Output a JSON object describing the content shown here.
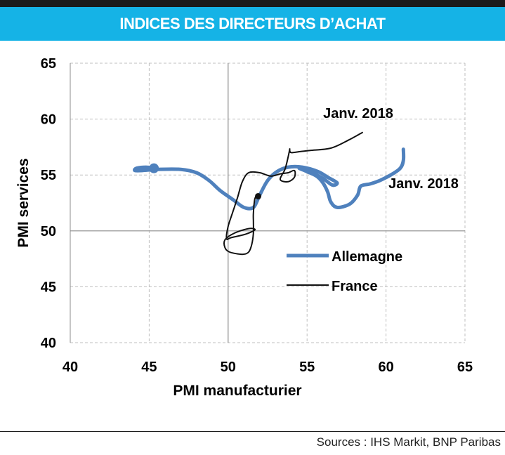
{
  "header": {
    "title": "INDICES DES DIRECTEURS D’ACHAT"
  },
  "footer": {
    "source": "Sources : IHS Markit, BNP Paribas"
  },
  "colors": {
    "title_bar": "#15b3e6",
    "allemagne": "#4f81bd",
    "france": "#111111",
    "grid": "#bfbfbf",
    "axis": "#8c8c8c"
  },
  "chart_data": {
    "type": "line",
    "title": "INDICES DES DIRECTEURS D’ACHAT",
    "xlabel": "PMI manufacturier",
    "ylabel": "PMI  services",
    "xlim": [
      40,
      65
    ],
    "ylim": [
      40,
      65
    ],
    "x_ticks": [
      "40",
      "45",
      "50",
      "55",
      "60",
      "65"
    ],
    "y_ticks": [
      "40",
      "45",
      "50",
      "55",
      "60",
      "65"
    ],
    "grid": "dashed",
    "crosshair": {
      "x": 50,
      "y": 50
    },
    "legend": {
      "position": "center-right",
      "entries": [
        "Allemagne",
        "France"
      ]
    },
    "series": [
      {
        "name": "Allemagne",
        "color": "#4f81bd",
        "start_marker": true,
        "label": "Janv. 2018",
        "points": [
          [
            45.3,
            55.6
          ],
          [
            44.8,
            55.7
          ],
          [
            44.2,
            55.6
          ],
          [
            44.1,
            55.4
          ],
          [
            44.6,
            55.4
          ],
          [
            45.5,
            55.5
          ],
          [
            47,
            55.5
          ],
          [
            48,
            55.2
          ],
          [
            48.8,
            54.5
          ],
          [
            49.5,
            53.6
          ],
          [
            50.3,
            52.8
          ],
          [
            51,
            52.1
          ],
          [
            51.6,
            52.1
          ],
          [
            52,
            53.2
          ],
          [
            52.5,
            54.5
          ],
          [
            53.1,
            55.3
          ],
          [
            53.8,
            55.7
          ],
          [
            54.7,
            55.7
          ],
          [
            55.7,
            55.3
          ],
          [
            56.3,
            54.8
          ],
          [
            56.9,
            54.3
          ],
          [
            56.6,
            54.1
          ],
          [
            56,
            54.7
          ],
          [
            55.2,
            55.3
          ],
          [
            54.5,
            55.6
          ],
          [
            55,
            55.3
          ],
          [
            55.6,
            54.9
          ],
          [
            56,
            54.3
          ],
          [
            56.3,
            53.5
          ],
          [
            56.5,
            52.6
          ],
          [
            56.9,
            52.1
          ],
          [
            57.7,
            52.4
          ],
          [
            58.2,
            53.2
          ],
          [
            58.4,
            54
          ],
          [
            59,
            54.2
          ],
          [
            59.6,
            54.5
          ],
          [
            60.3,
            55
          ],
          [
            60.9,
            55.6
          ],
          [
            61.1,
            56.3
          ],
          [
            61.1,
            57.3
          ]
        ]
      },
      {
        "name": "France",
        "color": "#111111",
        "end_marker": true,
        "label": "Janv. 2018",
        "points": [
          [
            51.9,
            53.1
          ],
          [
            51.7,
            52.9
          ],
          [
            51.6,
            51.6
          ],
          [
            51.6,
            50.8
          ],
          [
            51.6,
            49.8
          ],
          [
            51.5,
            48.8
          ],
          [
            51.3,
            48.1
          ],
          [
            50.9,
            47.9
          ],
          [
            50.1,
            48.1
          ],
          [
            49.8,
            48.5
          ],
          [
            49.8,
            49.2
          ],
          [
            50.4,
            49.8
          ],
          [
            51.3,
            50.2
          ],
          [
            51.7,
            50.1
          ],
          [
            51.1,
            49.7
          ],
          [
            50.2,
            49.4
          ],
          [
            49.9,
            49.3
          ],
          [
            50,
            50.4
          ],
          [
            50.3,
            51.7
          ],
          [
            50.6,
            53
          ],
          [
            50.9,
            54.4
          ],
          [
            51.3,
            55.2
          ],
          [
            52,
            55.2
          ],
          [
            52.7,
            54.9
          ],
          [
            53.3,
            55.1
          ],
          [
            53.8,
            55.2
          ],
          [
            54.2,
            55.4
          ],
          [
            54.2,
            54.8
          ],
          [
            53.8,
            54.4
          ],
          [
            53.3,
            54.6
          ],
          [
            53.6,
            55.5
          ],
          [
            53.8,
            56.6
          ],
          [
            53.9,
            57.3
          ],
          [
            53.9,
            57.2
          ],
          [
            54,
            57
          ],
          [
            54.6,
            57.1
          ],
          [
            55.2,
            57.2
          ],
          [
            56.5,
            57.4
          ],
          [
            57.6,
            58.1
          ],
          [
            58.5,
            58.8
          ]
        ]
      }
    ]
  }
}
